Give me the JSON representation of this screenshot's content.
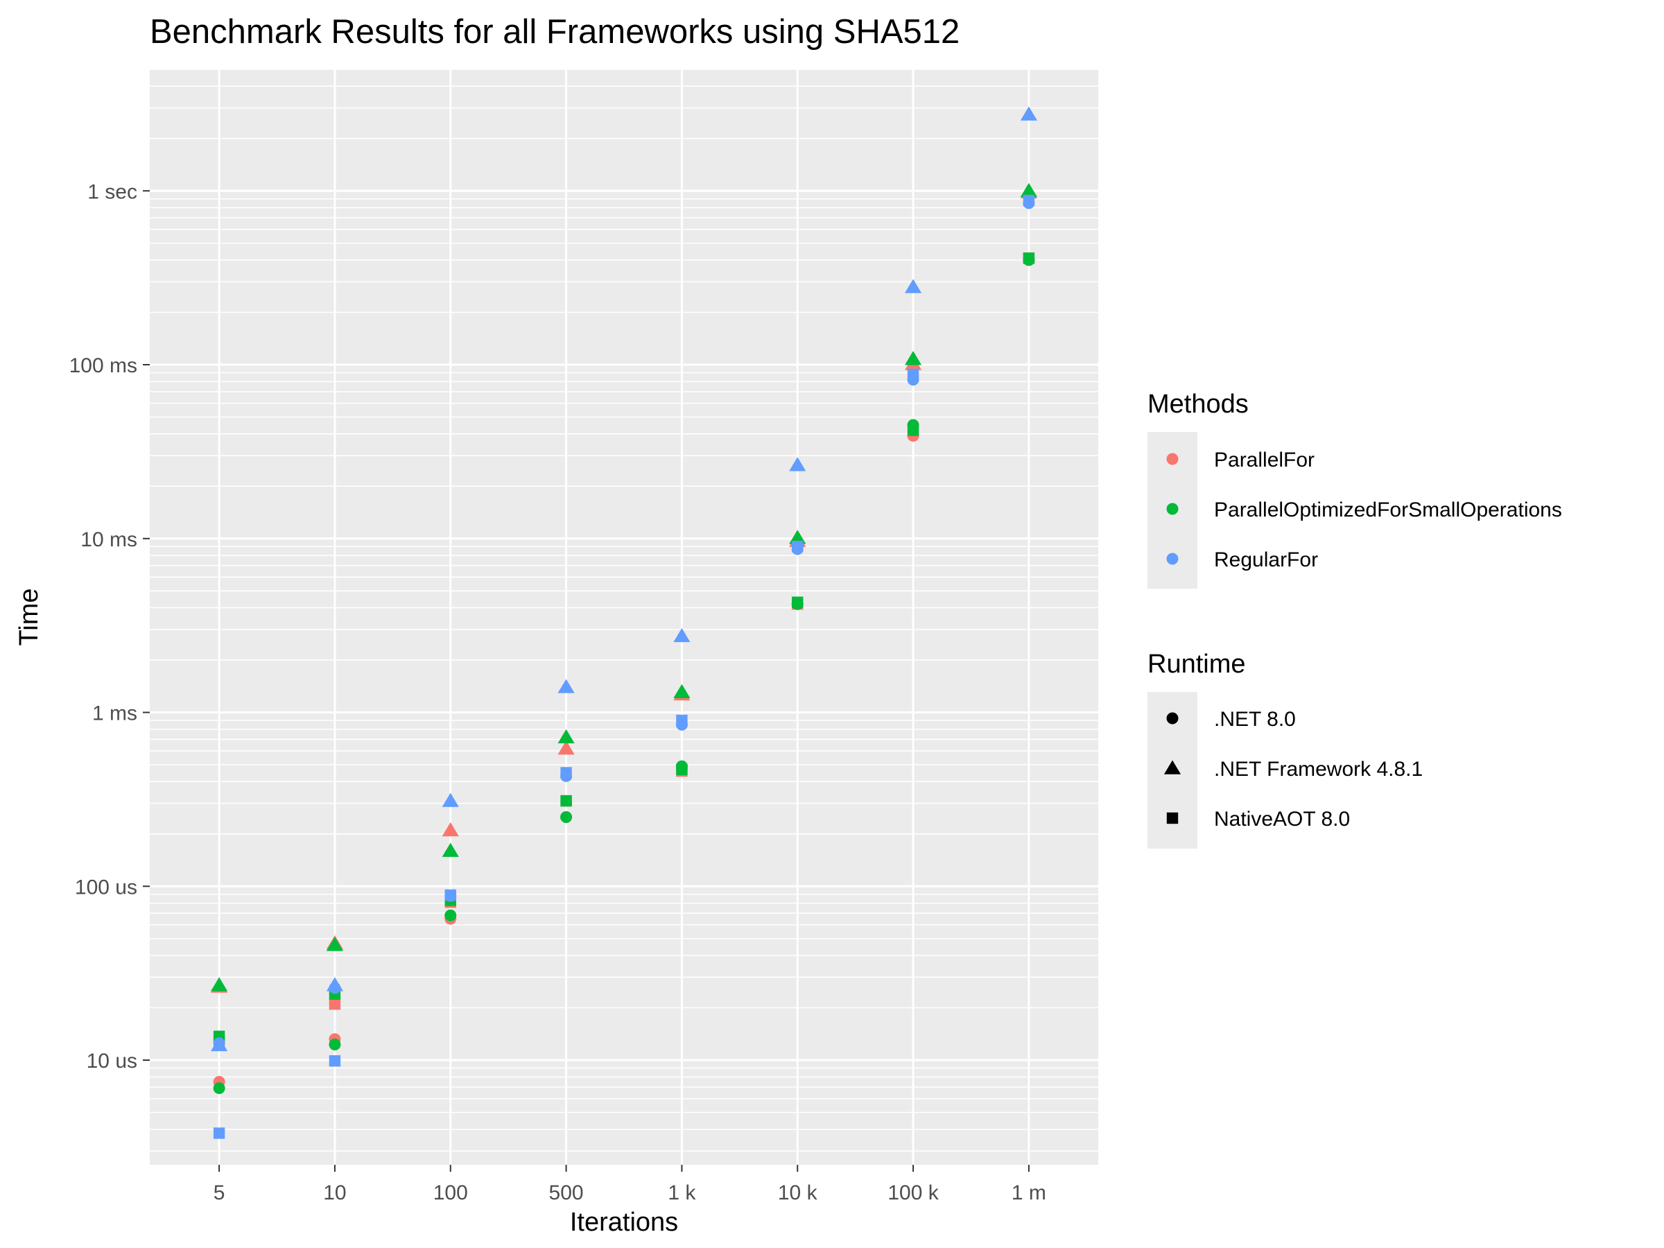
{
  "chart_data": {
    "type": "scatter",
    "title": "Benchmark Results for all Frameworks using SHA512",
    "xlabel": "Iterations",
    "ylabel": "Time",
    "y_scale": "log10",
    "y_unit": "seconds",
    "ylim": [
      2.5e-06,
      5
    ],
    "categories": [
      "5",
      "10",
      "100",
      "500",
      "1 k",
      "10 k",
      "100 k",
      "1 m"
    ],
    "y_ticks": [
      {
        "value": 1e-05,
        "label": "10 us"
      },
      {
        "value": 0.0001,
        "label": "100 us"
      },
      {
        "value": 0.001,
        "label": "1 ms"
      },
      {
        "value": 0.01,
        "label": "10 ms"
      },
      {
        "value": 0.1,
        "label": "100 ms"
      },
      {
        "value": 1,
        "label": "1 sec"
      }
    ],
    "grid": true,
    "legend_position": "right",
    "legends": {
      "color": {
        "title": "Methods",
        "entries": [
          {
            "name": "ParallelFor",
            "color": "#F8766D"
          },
          {
            "name": "ParallelOptimizedForSmallOperations",
            "color": "#00BA38"
          },
          {
            "name": "RegularFor",
            "color": "#619CFF"
          }
        ]
      },
      "shape": {
        "title": "Runtime",
        "entries": [
          {
            "name": ".NET 8.0",
            "shape": "circle"
          },
          {
            "name": ".NET Framework 4.8.1",
            "shape": "triangle"
          },
          {
            "name": "NativeAOT 8.0",
            "shape": "square"
          }
        ]
      }
    },
    "series": [
      {
        "method": "ParallelFor",
        "runtime": ".NET 8.0",
        "values": [
          7.5e-06,
          1.32e-05,
          6.5e-05,
          0.00025,
          0.00047,
          0.0042,
          0.039,
          0.4
        ]
      },
      {
        "method": "ParallelFor",
        "runtime": ".NET Framework 4.8.1",
        "values": [
          2.65e-05,
          4.7e-05,
          0.00021,
          0.00062,
          0.00127,
          0.0097,
          0.101,
          0.98
        ]
      },
      {
        "method": "ParallelFor",
        "runtime": "NativeAOT 8.0",
        "values": [
          1.28e-05,
          2.1e-05,
          8.1e-05,
          0.00031,
          0.00046,
          0.0042,
          0.041,
          0.41
        ]
      },
      {
        "method": "ParallelOptimizedForSmallOperations",
        "runtime": ".NET 8.0",
        "values": [
          6.9e-06,
          1.23e-05,
          6.8e-05,
          0.00025,
          0.00049,
          0.0042,
          0.045,
          0.4
        ]
      },
      {
        "method": "ParallelOptimizedForSmallOperations",
        "runtime": ".NET Framework 4.8.1",
        "values": [
          2.7e-05,
          4.6e-05,
          0.00016,
          0.00072,
          0.00131,
          0.0101,
          0.108,
          1.0
        ]
      },
      {
        "method": "ParallelOptimizedForSmallOperations",
        "runtime": "NativeAOT 8.0",
        "values": [
          1.37e-05,
          2.4e-05,
          8.3e-05,
          0.00031,
          0.00047,
          0.0043,
          0.042,
          0.41
        ]
      },
      {
        "method": "RegularFor",
        "runtime": ".NET 8.0",
        "values": [
          1.25e-05,
          2.6e-05,
          8.8e-05,
          0.00043,
          0.00085,
          0.0087,
          0.082,
          0.85
        ]
      },
      {
        "method": "RegularFor",
        "runtime": ".NET Framework 4.8.1",
        "values": [
          1.22e-05,
          2.7e-05,
          0.00031,
          0.0014,
          0.00275,
          0.0265,
          0.28,
          2.75
        ]
      },
      {
        "method": "RegularFor",
        "runtime": "NativeAOT 8.0",
        "values": [
          3.8e-06,
          9.9e-06,
          8.9e-05,
          0.00045,
          0.0009,
          0.009,
          0.088,
          0.88
        ]
      }
    ]
  }
}
